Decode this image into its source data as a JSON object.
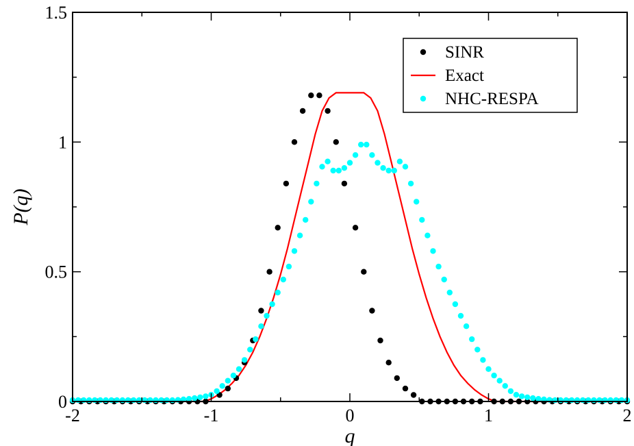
{
  "chart_data": {
    "type": "scatter",
    "title": "",
    "xlabel": "q",
    "ylabel": "P(q)",
    "xlim": [
      -2,
      2
    ],
    "ylim": [
      0,
      1.5
    ],
    "x_ticks": [
      -2,
      -1,
      0,
      1,
      2
    ],
    "x_tick_labels": [
      "-2",
      "-1",
      "0",
      "1",
      "2"
    ],
    "y_ticks": [
      0,
      0.5,
      1,
      1.5
    ],
    "y_tick_labels": [
      "0",
      "0.5",
      "1",
      "1.5"
    ],
    "grid": false,
    "legend_position": "top-right",
    "series": [
      {
        "name": "SINR",
        "kind": "scatter",
        "color": "#000000",
        "x": [
          -2.0,
          -1.94,
          -1.88,
          -1.82,
          -1.76,
          -1.7,
          -1.64,
          -1.58,
          -1.52,
          -1.46,
          -1.4,
          -1.34,
          -1.28,
          -1.22,
          -1.16,
          -1.1,
          -1.04,
          -0.94,
          -0.88,
          -0.82,
          -0.76,
          -0.7,
          -0.64,
          -0.58,
          -0.52,
          -0.46,
          -0.4,
          -0.34,
          -0.28,
          -0.22,
          -0.16,
          -0.1,
          -0.04,
          0.04,
          0.1,
          0.16,
          0.22,
          0.28,
          0.34,
          0.4,
          0.46,
          0.52,
          0.58,
          0.64,
          0.7,
          0.76,
          0.82,
          0.88,
          0.94,
          1.04,
          1.1,
          1.16,
          1.22,
          1.28,
          1.34,
          1.4,
          1.46,
          1.52,
          1.58,
          1.64,
          1.7,
          1.76,
          1.82,
          1.88,
          1.94,
          2.0
        ],
        "y": [
          0.0,
          0.0,
          0.0,
          0.0,
          0.0,
          0.0,
          0.0,
          0.0,
          0.0,
          0.0,
          0.0,
          0.0,
          0.0,
          0.0,
          0.0,
          0.0,
          0.0,
          0.025,
          0.05,
          0.09,
          0.15,
          0.235,
          0.35,
          0.5,
          0.67,
          0.84,
          1.0,
          1.12,
          1.18,
          1.18,
          1.12,
          1.0,
          0.84,
          0.67,
          0.5,
          0.35,
          0.235,
          0.15,
          0.09,
          0.05,
          0.025,
          0.0,
          0.0,
          0.0,
          0.0,
          0.0,
          0.0,
          0.0,
          0.0,
          0.0,
          0.0,
          0.0,
          0.0,
          0.0,
          0.0,
          0.0,
          0.0,
          0.0,
          0.0,
          0.0,
          0.0,
          0.0,
          0.0,
          0.0,
          0.0,
          0.0
        ]
      },
      {
        "name": "Exact",
        "kind": "line",
        "color": "#ff0000",
        "x": [
          -2.0,
          -1.1,
          -1.05,
          -1.0,
          -0.95,
          -0.9,
          -0.85,
          -0.8,
          -0.75,
          -0.7,
          -0.65,
          -0.6,
          -0.55,
          -0.5,
          -0.45,
          -0.4,
          -0.35,
          -0.3,
          -0.25,
          -0.2,
          -0.15,
          -0.1,
          -0.05,
          0.0,
          0.05,
          0.1,
          0.15,
          0.2,
          0.25,
          0.3,
          0.35,
          0.4,
          0.45,
          0.5,
          0.55,
          0.6,
          0.65,
          0.7,
          0.75,
          0.8,
          0.85,
          0.9,
          0.95,
          1.0,
          1.05,
          1.1,
          2.0
        ],
        "y": [
          0.0,
          0.0,
          0.0,
          0.01,
          0.025,
          0.045,
          0.07,
          0.1,
          0.14,
          0.19,
          0.25,
          0.32,
          0.4,
          0.49,
          0.59,
          0.7,
          0.81,
          0.92,
          1.03,
          1.12,
          1.17,
          1.19,
          1.19,
          1.19,
          1.19,
          1.19,
          1.17,
          1.12,
          1.03,
          0.92,
          0.81,
          0.7,
          0.59,
          0.49,
          0.4,
          0.32,
          0.25,
          0.19,
          0.14,
          0.1,
          0.07,
          0.045,
          0.025,
          0.01,
          0.0,
          0.0,
          0.0
        ]
      },
      {
        "name": "NHC-RESPA",
        "kind": "scatter",
        "color": "#00ffff",
        "x": [
          -2.0,
          -1.96,
          -1.92,
          -1.88,
          -1.84,
          -1.8,
          -1.76,
          -1.72,
          -1.68,
          -1.64,
          -1.6,
          -1.56,
          -1.52,
          -1.48,
          -1.44,
          -1.4,
          -1.36,
          -1.32,
          -1.28,
          -1.24,
          -1.2,
          -1.16,
          -1.12,
          -1.08,
          -1.04,
          -1.0,
          -0.96,
          -0.92,
          -0.88,
          -0.84,
          -0.8,
          -0.76,
          -0.72,
          -0.68,
          -0.64,
          -0.6,
          -0.56,
          -0.52,
          -0.48,
          -0.44,
          -0.4,
          -0.36,
          -0.32,
          -0.28,
          -0.24,
          -0.2,
          -0.16,
          -0.12,
          -0.08,
          -0.04,
          0.0,
          0.04,
          0.08,
          0.12,
          0.16,
          0.2,
          0.24,
          0.28,
          0.32,
          0.36,
          0.4,
          0.44,
          0.48,
          0.52,
          0.56,
          0.6,
          0.64,
          0.68,
          0.72,
          0.76,
          0.8,
          0.84,
          0.88,
          0.92,
          0.96,
          1.0,
          1.04,
          1.08,
          1.12,
          1.16,
          1.2,
          1.24,
          1.28,
          1.32,
          1.36,
          1.4,
          1.44,
          1.48,
          1.52,
          1.56,
          1.6,
          1.64,
          1.68,
          1.72,
          1.76,
          1.8,
          1.84,
          1.88,
          1.92,
          1.96,
          2.0
        ],
        "y": [
          0.005,
          0.005,
          0.005,
          0.005,
          0.005,
          0.005,
          0.005,
          0.005,
          0.005,
          0.005,
          0.005,
          0.005,
          0.005,
          0.005,
          0.005,
          0.005,
          0.005,
          0.005,
          0.005,
          0.006,
          0.008,
          0.01,
          0.013,
          0.016,
          0.02,
          0.026,
          0.04,
          0.06,
          0.08,
          0.1,
          0.125,
          0.16,
          0.2,
          0.24,
          0.29,
          0.33,
          0.375,
          0.42,
          0.47,
          0.52,
          0.58,
          0.64,
          0.7,
          0.77,
          0.84,
          0.905,
          0.925,
          0.89,
          0.89,
          0.9,
          0.92,
          0.95,
          0.99,
          0.99,
          0.95,
          0.92,
          0.9,
          0.89,
          0.89,
          0.925,
          0.905,
          0.84,
          0.77,
          0.7,
          0.64,
          0.58,
          0.52,
          0.47,
          0.42,
          0.375,
          0.33,
          0.29,
          0.24,
          0.2,
          0.16,
          0.125,
          0.1,
          0.08,
          0.06,
          0.04,
          0.026,
          0.02,
          0.016,
          0.013,
          0.01,
          0.008,
          0.006,
          0.005,
          0.005,
          0.005,
          0.005,
          0.005,
          0.005,
          0.005,
          0.005,
          0.005,
          0.005,
          0.005,
          0.005,
          0.005,
          0.005
        ]
      }
    ]
  }
}
